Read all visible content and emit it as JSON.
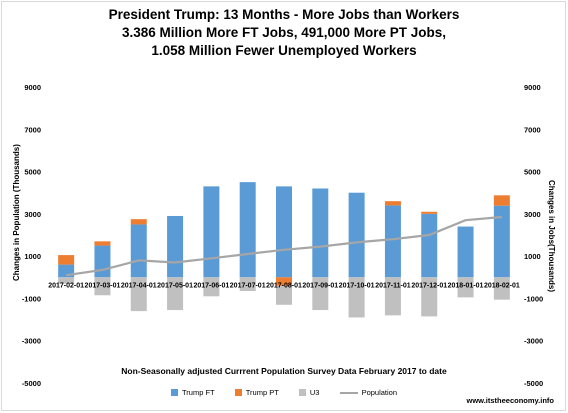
{
  "title": {
    "line1": "President Trump: 13 Months  - More Jobs than Workers",
    "line2": "3.386 Million More FT Jobs, 491,000 More PT Jobs,",
    "line3": "1.058 Million Fewer Unemployed Workers"
  },
  "axes": {
    "left_label": "Changes in Population (Thousands)",
    "right_label": "Changes in Jobs(Thousands)"
  },
  "footnote": "Non-Seasonally adjusted Currrent Population Survey Data February 2017 to date",
  "source": "www.itstheeconomy.info",
  "colors": {
    "trump_ft": "#5b9bd5",
    "trump_pt": "#ed7d31",
    "u3": "#c0c0c0",
    "population": "#a6a6a6"
  },
  "chart_data": {
    "type": "bar",
    "stacked": true,
    "categories": [
      "2017-02-01",
      "2017-03-01",
      "2017-04-01",
      "2017-05-01",
      "2017-06-01",
      "2017-07-01",
      "2017-08-01",
      "2017-09-01",
      "2017-10-01",
      "2017-11-01",
      "2017-12-01",
      "2018-01-01",
      "2018-02-01"
    ],
    "ylim": [
      -5000,
      9000
    ],
    "yticks": [
      -5000,
      -3000,
      -1000,
      1000,
      3000,
      5000,
      7000,
      9000
    ],
    "grid": false,
    "legend_position": "bottom",
    "series": [
      {
        "name": "Trump FT",
        "type": "bar",
        "values": [
          600,
          1500,
          2500,
          2900,
          4300,
          4500,
          4300,
          4200,
          4000,
          3400,
          3000,
          2400,
          3386
        ]
      },
      {
        "name": "Trump PT",
        "type": "bar",
        "values": [
          450,
          200,
          250,
          0,
          0,
          0,
          -400,
          0,
          0,
          200,
          100,
          0,
          491
        ]
      },
      {
        "name": "U3",
        "type": "bar",
        "values": [
          -300,
          -850,
          -1600,
          -1550,
          -900,
          -650,
          -900,
          -1550,
          -1900,
          -1800,
          -1850,
          -950,
          -1058
        ]
      },
      {
        "name": "Population",
        "type": "line",
        "values": [
          100,
          350,
          800,
          700,
          900,
          1100,
          1300,
          1450,
          1650,
          1800,
          2000,
          2700,
          2850
        ]
      }
    ]
  }
}
